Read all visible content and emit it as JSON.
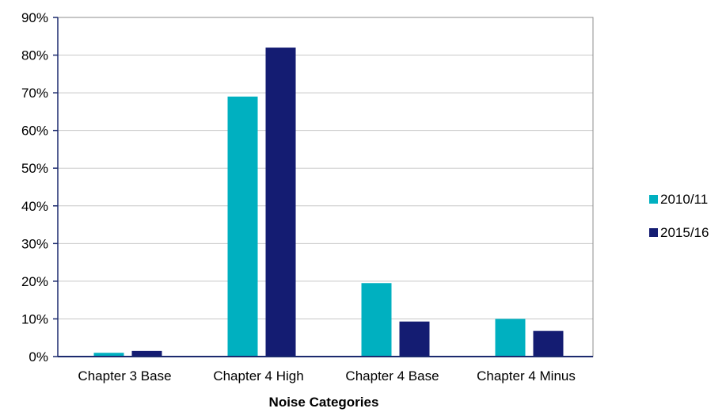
{
  "chart_data": {
    "type": "bar",
    "title": "",
    "xlabel": "Noise Categories",
    "ylabel": "",
    "categories": [
      "Chapter 3 Base",
      "Chapter 4 High",
      "Chapter 4 Base",
      "Chapter 4 Minus"
    ],
    "series": [
      {
        "name": "2010/11",
        "color": "#00b0c0",
        "values": [
          1.0,
          69.0,
          19.5,
          10.0
        ]
      },
      {
        "name": "2015/16",
        "color": "#141c72",
        "values": [
          1.5,
          82.0,
          9.3,
          6.8
        ]
      }
    ],
    "ylim": [
      0,
      90
    ],
    "yticks": [
      0,
      10,
      20,
      30,
      40,
      50,
      60,
      70,
      80,
      90
    ],
    "ytick_labels": [
      "0%",
      "10%",
      "20%",
      "30%",
      "40%",
      "50%",
      "60%",
      "70%",
      "80%",
      "90%"
    ],
    "grid": true,
    "legend_position": "right"
  }
}
